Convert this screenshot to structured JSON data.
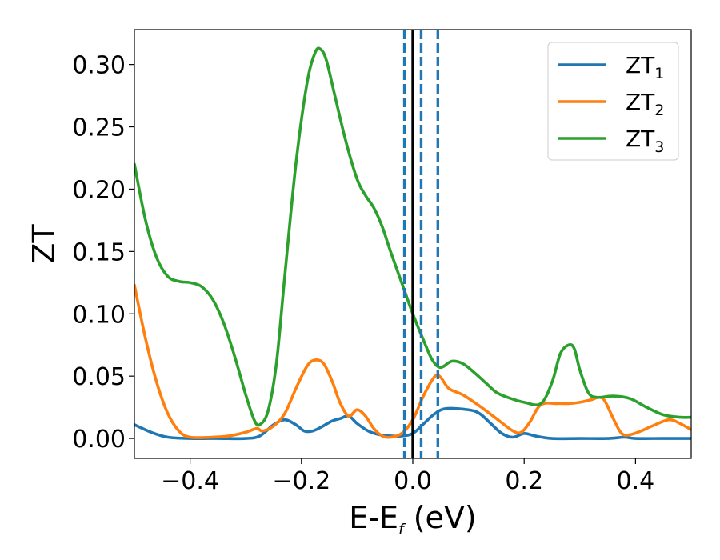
{
  "chart_data": {
    "type": "line",
    "xlabel": "E-E",
    "xlabel_sub": "f",
    "xlabel_unit": " (eV)",
    "ylabel": "ZT",
    "xlim": [
      -0.5,
      0.5
    ],
    "ylim": [
      -0.016,
      0.328
    ],
    "xticks": [
      -0.4,
      -0.2,
      0.0,
      0.2,
      0.4
    ],
    "xtick_labels": [
      "−0.4",
      "−0.2",
      "0.0",
      "0.2",
      "0.4"
    ],
    "yticks": [
      0.0,
      0.05,
      0.1,
      0.15,
      0.2,
      0.25,
      0.3
    ],
    "ytick_labels": [
      "0.00",
      "0.05",
      "0.10",
      "0.15",
      "0.20",
      "0.25",
      "0.30"
    ],
    "grid": false,
    "legend_position": "top-right",
    "vertical_lines": [
      {
        "x": 0.0,
        "style": "solid",
        "color": "#000000"
      },
      {
        "x": -0.015,
        "style": "dashed",
        "color": "#1f77b4"
      },
      {
        "x": 0.015,
        "style": "dashed",
        "color": "#1f77b4"
      },
      {
        "x": 0.045,
        "style": "dashed",
        "color": "#1f77b4"
      }
    ],
    "series": [
      {
        "name": "ZT",
        "sub": "1",
        "color": "#1f77b4",
        "points": [
          [
            -0.5,
            0.011
          ],
          [
            -0.47,
            0.005
          ],
          [
            -0.44,
            0.001
          ],
          [
            -0.4,
            0.0
          ],
          [
            -0.35,
            0.0
          ],
          [
            -0.3,
            0.0
          ],
          [
            -0.275,
            0.002
          ],
          [
            -0.25,
            0.011
          ],
          [
            -0.23,
            0.015
          ],
          [
            -0.21,
            0.011
          ],
          [
            -0.195,
            0.006
          ],
          [
            -0.18,
            0.006
          ],
          [
            -0.165,
            0.009
          ],
          [
            -0.145,
            0.014
          ],
          [
            -0.13,
            0.016
          ],
          [
            -0.115,
            0.018
          ],
          [
            -0.1,
            0.012
          ],
          [
            -0.08,
            0.006
          ],
          [
            -0.06,
            0.003
          ],
          [
            -0.04,
            0.002
          ],
          [
            -0.02,
            0.002
          ],
          [
            0.0,
            0.004
          ],
          [
            0.02,
            0.012
          ],
          [
            0.04,
            0.02
          ],
          [
            0.06,
            0.024
          ],
          [
            0.1,
            0.023
          ],
          [
            0.12,
            0.02
          ],
          [
            0.14,
            0.012
          ],
          [
            0.16,
            0.004
          ],
          [
            0.18,
            0.001
          ],
          [
            0.2,
            0.004
          ],
          [
            0.22,
            0.002
          ],
          [
            0.25,
            0.0
          ],
          [
            0.3,
            0.0
          ],
          [
            0.35,
            0.0
          ],
          [
            0.38,
            0.001
          ],
          [
            0.4,
            0.0
          ],
          [
            0.45,
            0.0
          ],
          [
            0.5,
            0.0
          ]
        ]
      },
      {
        "name": "ZT",
        "sub": "2",
        "color": "#ff7f0e",
        "points": [
          [
            -0.5,
            0.123
          ],
          [
            -0.48,
            0.08
          ],
          [
            -0.46,
            0.045
          ],
          [
            -0.44,
            0.02
          ],
          [
            -0.42,
            0.006
          ],
          [
            -0.4,
            0.001
          ],
          [
            -0.36,
            0.001
          ],
          [
            -0.33,
            0.002
          ],
          [
            -0.3,
            0.005
          ],
          [
            -0.28,
            0.008
          ],
          [
            -0.27,
            0.006
          ],
          [
            -0.25,
            0.01
          ],
          [
            -0.23,
            0.02
          ],
          [
            -0.21,
            0.04
          ],
          [
            -0.19,
            0.058
          ],
          [
            -0.175,
            0.063
          ],
          [
            -0.16,
            0.06
          ],
          [
            -0.145,
            0.046
          ],
          [
            -0.13,
            0.028
          ],
          [
            -0.115,
            0.018
          ],
          [
            -0.1,
            0.023
          ],
          [
            -0.085,
            0.018
          ],
          [
            -0.07,
            0.008
          ],
          [
            -0.055,
            0.002
          ],
          [
            -0.04,
            0.001
          ],
          [
            -0.02,
            0.004
          ],
          [
            0.0,
            0.015
          ],
          [
            0.02,
            0.035
          ],
          [
            0.04,
            0.05
          ],
          [
            0.05,
            0.049
          ],
          [
            0.065,
            0.04
          ],
          [
            0.09,
            0.035
          ],
          [
            0.12,
            0.026
          ],
          [
            0.15,
            0.016
          ],
          [
            0.18,
            0.006
          ],
          [
            0.195,
            0.005
          ],
          [
            0.21,
            0.013
          ],
          [
            0.23,
            0.027
          ],
          [
            0.26,
            0.028
          ],
          [
            0.28,
            0.028
          ],
          [
            0.3,
            0.029
          ],
          [
            0.32,
            0.031
          ],
          [
            0.335,
            0.033
          ],
          [
            0.345,
            0.03
          ],
          [
            0.36,
            0.016
          ],
          [
            0.375,
            0.004
          ],
          [
            0.39,
            0.003
          ],
          [
            0.41,
            0.006
          ],
          [
            0.43,
            0.01
          ],
          [
            0.46,
            0.015
          ],
          [
            0.48,
            0.012
          ],
          [
            0.5,
            0.007
          ]
        ]
      },
      {
        "name": "ZT",
        "sub": "3",
        "color": "#2ca02c",
        "points": [
          [
            -0.5,
            0.22
          ],
          [
            -0.48,
            0.175
          ],
          [
            -0.46,
            0.145
          ],
          [
            -0.44,
            0.13
          ],
          [
            -0.42,
            0.126
          ],
          [
            -0.4,
            0.125
          ],
          [
            -0.38,
            0.122
          ],
          [
            -0.36,
            0.112
          ],
          [
            -0.34,
            0.093
          ],
          [
            -0.32,
            0.066
          ],
          [
            -0.3,
            0.035
          ],
          [
            -0.285,
            0.015
          ],
          [
            -0.275,
            0.011
          ],
          [
            -0.26,
            0.022
          ],
          [
            -0.245,
            0.06
          ],
          [
            -0.23,
            0.13
          ],
          [
            -0.21,
            0.22
          ],
          [
            -0.19,
            0.285
          ],
          [
            -0.175,
            0.31
          ],
          [
            -0.165,
            0.312
          ],
          [
            -0.155,
            0.303
          ],
          [
            -0.14,
            0.275
          ],
          [
            -0.12,
            0.238
          ],
          [
            -0.1,
            0.208
          ],
          [
            -0.085,
            0.195
          ],
          [
            -0.07,
            0.185
          ],
          [
            -0.055,
            0.17
          ],
          [
            -0.04,
            0.15
          ],
          [
            -0.02,
            0.125
          ],
          [
            0.0,
            0.1
          ],
          [
            0.02,
            0.078
          ],
          [
            0.035,
            0.063
          ],
          [
            0.05,
            0.057
          ],
          [
            0.07,
            0.062
          ],
          [
            0.09,
            0.06
          ],
          [
            0.11,
            0.053
          ],
          [
            0.13,
            0.045
          ],
          [
            0.15,
            0.037
          ],
          [
            0.17,
            0.033
          ],
          [
            0.2,
            0.029
          ],
          [
            0.23,
            0.028
          ],
          [
            0.25,
            0.045
          ],
          [
            0.265,
            0.068
          ],
          [
            0.28,
            0.075
          ],
          [
            0.29,
            0.072
          ],
          [
            0.3,
            0.055
          ],
          [
            0.315,
            0.037
          ],
          [
            0.33,
            0.033
          ],
          [
            0.36,
            0.034
          ],
          [
            0.39,
            0.032
          ],
          [
            0.42,
            0.025
          ],
          [
            0.45,
            0.019
          ],
          [
            0.48,
            0.017
          ],
          [
            0.5,
            0.017
          ]
        ]
      }
    ]
  }
}
